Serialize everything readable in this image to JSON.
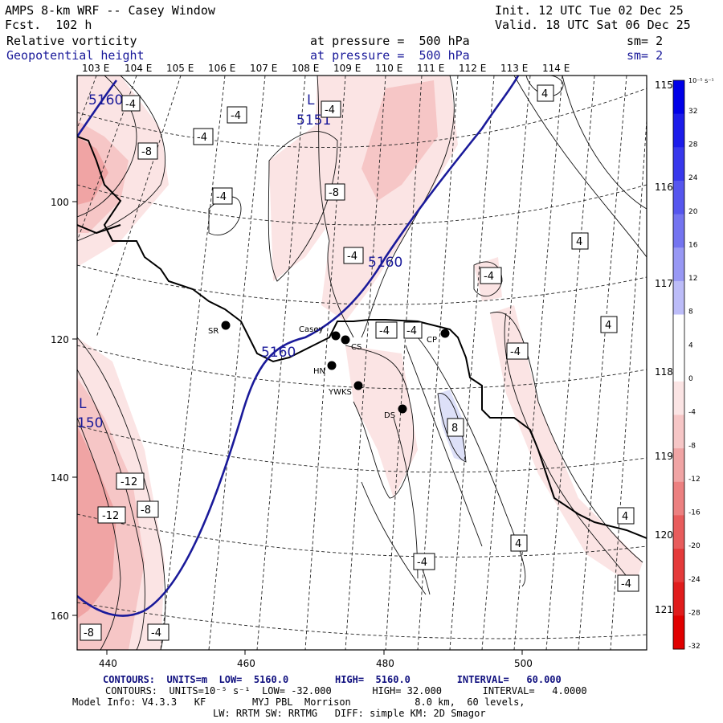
{
  "header": {
    "model": "AMPS 8-km WRF -- Casey Window",
    "fcst": "Fcst.  102 h",
    "init": "Init. 12 UTC Tue 02 Dec 25",
    "valid": "Valid. 18 UTC Sat 06 Dec 25",
    "field1_name": "Relative vorticity",
    "field1_level": "at pressure =  500 hPa",
    "field1_sm": "sm= 2",
    "field2_name": "Geopotential height",
    "field2_level": "at pressure =  500 hPa",
    "field2_sm": "sm= 2"
  },
  "map": {
    "top_lon_labels": [
      "103 E",
      "104 E",
      "105 E",
      "106 E",
      "107 E",
      "108 E",
      "109 E",
      "110 E",
      "111 E",
      "112 E",
      "113 E",
      "114 E"
    ],
    "right_lat_labels": [
      "115 E",
      "116 E",
      "117 E",
      "118 E",
      "119 E",
      "120 E",
      "121 E"
    ],
    "x_tick_labels": [
      "440",
      "460",
      "480",
      "500"
    ],
    "y_tick_labels": [
      "100",
      "120",
      "140",
      "160"
    ],
    "stations": [
      {
        "name": "SR"
      },
      {
        "name": "Casey"
      },
      {
        "name": "CS"
      },
      {
        "name": "CP"
      },
      {
        "name": "HN"
      },
      {
        "name": "YWKS"
      },
      {
        "name": "DS"
      }
    ],
    "height_labels": [
      "5160",
      "5151",
      "5160",
      "5160",
      "150",
      "L",
      "L"
    ],
    "vort_labels": [
      "-4",
      "-4",
      "-8",
      "-4",
      "-4",
      "-8",
      "-4",
      "-4",
      "4",
      "-4",
      "-4",
      "-4",
      "4",
      "-4",
      "4",
      "8",
      "-12",
      "-12",
      "-8",
      "-8",
      "-4",
      "-4",
      "4",
      "4",
      "-4"
    ]
  },
  "colorbar": {
    "unit": "10⁻⁵ s⁻¹",
    "labels": [
      "32",
      "28",
      "24",
      "20",
      "16",
      "12",
      "8",
      "4",
      "0",
      "-4",
      "-8",
      "-12",
      "-16",
      "-20",
      "-24",
      "-28",
      "-32"
    ],
    "colors": [
      "#0000e8",
      "#1c1cea",
      "#3838ec",
      "#5656ee",
      "#7474f0",
      "#9898f4",
      "#bcbcf8",
      "#ffffff",
      "#ffffff",
      "#fbe4e4",
      "#f6c6c6",
      "#f0a4a4",
      "#ec8080",
      "#e85c5c",
      "#e43a3a",
      "#e01c1c",
      "#e00000"
    ]
  },
  "footer": {
    "line1": "CONTOURS:  UNITS=m  LOW=  5160.0        HIGH=  5160.0        INTERVAL=   60.000",
    "line2": "CONTOURS:  UNITS=10⁻⁵ s⁻¹  LOW= -32.000       HIGH= 32.000       INTERVAL=   4.0000",
    "line3": "Model Info: V4.3.3   KF        MYJ PBL  Morrison           8.0 km,  60 levels,",
    "line4": "LW: RRTM SW: RRTMG   DIFF: simple KM: 2D Smagor"
  }
}
